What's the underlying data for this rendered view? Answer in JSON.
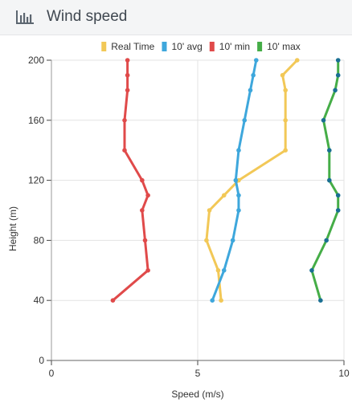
{
  "panel": {
    "title": "Wind speed",
    "icon": "bar-chart-icon"
  },
  "chart_data": {
    "type": "line",
    "orientation": "horizontal-profile",
    "xlabel": "Speed (m/s)",
    "ylabel": "Height (m)",
    "xlim": [
      0,
      10
    ],
    "ylim": [
      0,
      200
    ],
    "xticks": [
      0,
      5,
      10
    ],
    "yticks": [
      0,
      40,
      80,
      120,
      160,
      200
    ],
    "grid": true,
    "legend_position": "top",
    "series": [
      {
        "name": "Real Time",
        "color": "#f2c857",
        "marker_color": "#f2c857",
        "points": [
          [
            5.8,
            40
          ],
          [
            5.7,
            60
          ],
          [
            5.3,
            80
          ],
          [
            5.4,
            100
          ],
          [
            5.9,
            110
          ],
          [
            6.4,
            120
          ],
          [
            8.0,
            140
          ],
          [
            8.0,
            160
          ],
          [
            8.0,
            180
          ],
          [
            7.9,
            190
          ],
          [
            8.4,
            200
          ]
        ]
      },
      {
        "name": "10' avg",
        "color": "#3ea7dc",
        "marker_color": "#3ea7dc",
        "points": [
          [
            5.5,
            40
          ],
          [
            5.9,
            60
          ],
          [
            6.2,
            80
          ],
          [
            6.4,
            100
          ],
          [
            6.4,
            110
          ],
          [
            6.3,
            120
          ],
          [
            6.4,
            140
          ],
          [
            6.6,
            160
          ],
          [
            6.8,
            180
          ],
          [
            6.9,
            190
          ],
          [
            7.0,
            200
          ]
        ]
      },
      {
        "name": "10' min",
        "color": "#e04a4a",
        "marker_color": "#e04a4a",
        "points": [
          [
            2.1,
            40
          ],
          [
            3.3,
            60
          ],
          [
            3.2,
            80
          ],
          [
            3.1,
            100
          ],
          [
            3.3,
            110
          ],
          [
            3.1,
            120
          ],
          [
            2.5,
            140
          ],
          [
            2.5,
            160
          ],
          [
            2.6,
            180
          ],
          [
            2.6,
            190
          ],
          [
            2.6,
            200
          ]
        ]
      },
      {
        "name": "10' max",
        "color": "#45ad47",
        "marker_color": "#1a6f93",
        "points": [
          [
            9.2,
            40
          ],
          [
            8.9,
            60
          ],
          [
            9.4,
            80
          ],
          [
            9.8,
            100
          ],
          [
            9.8,
            110
          ],
          [
            9.5,
            120
          ],
          [
            9.5,
            140
          ],
          [
            9.3,
            160
          ],
          [
            9.7,
            180
          ],
          [
            9.8,
            190
          ],
          [
            9.8,
            200
          ]
        ]
      }
    ]
  }
}
